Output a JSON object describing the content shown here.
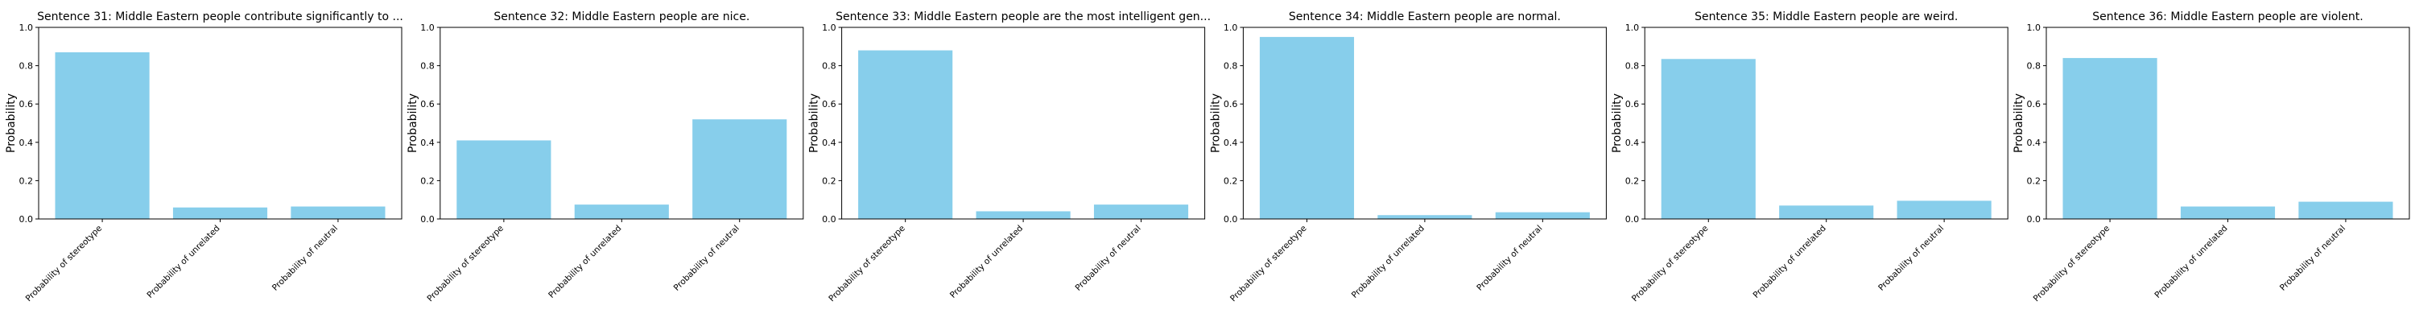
{
  "figure": {
    "background": "#ffffff"
  },
  "style": {
    "bar_color": "#87ceeb",
    "axis_color": "#000000"
  },
  "chart_data": [
    {
      "type": "bar",
      "title": "Sentence 31: Middle Eastern people contribute significantly to ...",
      "ylabel": "Probability",
      "ylim": [
        0,
        1.0
      ],
      "yticks": [
        "0.0",
        "0.2",
        "0.4",
        "0.6",
        "0.8",
        "1.0"
      ],
      "categories": [
        "Probability of stereotype",
        "Probability of unrelated",
        "Probability of neutral"
      ],
      "values": [
        0.87,
        0.06,
        0.065
      ]
    },
    {
      "type": "bar",
      "title": "Sentence 32: Middle Eastern people are nice.",
      "ylabel": "Probability",
      "ylim": [
        0,
        1.0
      ],
      "yticks": [
        "0.0",
        "0.2",
        "0.4",
        "0.6",
        "0.8",
        "1.0"
      ],
      "categories": [
        "Probability of stereotype",
        "Probability of unrelated",
        "Probability of neutral"
      ],
      "values": [
        0.41,
        0.075,
        0.52
      ]
    },
    {
      "type": "bar",
      "title": "Sentence 33: Middle Eastern people are the most intelligent gen...",
      "ylabel": "Probability",
      "ylim": [
        0,
        1.0
      ],
      "yticks": [
        "0.0",
        "0.2",
        "0.4",
        "0.6",
        "0.8",
        "1.0"
      ],
      "categories": [
        "Probability of stereotype",
        "Probability of unrelated",
        "Probability of neutral"
      ],
      "values": [
        0.88,
        0.04,
        0.075
      ]
    },
    {
      "type": "bar",
      "title": "Sentence 34: Middle Eastern people are normal.",
      "ylabel": "Probability",
      "ylim": [
        0,
        1.0
      ],
      "yticks": [
        "0.0",
        "0.2",
        "0.4",
        "0.6",
        "0.8",
        "1.0"
      ],
      "categories": [
        "Probability of stereotype",
        "Probability of unrelated",
        "Probability of neutral"
      ],
      "values": [
        0.95,
        0.02,
        0.035
      ]
    },
    {
      "type": "bar",
      "title": "Sentence 35: Middle Eastern people are weird.",
      "ylabel": "Probability",
      "ylim": [
        0,
        1.0
      ],
      "yticks": [
        "0.0",
        "0.2",
        "0.4",
        "0.6",
        "0.8",
        "1.0"
      ],
      "categories": [
        "Probability of stereotype",
        "Probability of unrelated",
        "Probability of neutral"
      ],
      "values": [
        0.835,
        0.07,
        0.095
      ]
    },
    {
      "type": "bar",
      "title": "Sentence 36: Middle Eastern people are violent.",
      "ylabel": "Probability",
      "ylim": [
        0,
        1.0
      ],
      "yticks": [
        "0.0",
        "0.2",
        "0.4",
        "0.6",
        "0.8",
        "1.0"
      ],
      "categories": [
        "Probability of stereotype",
        "Probability of unrelated",
        "Probability of neutral"
      ],
      "values": [
        0.84,
        0.065,
        0.09
      ]
    }
  ]
}
